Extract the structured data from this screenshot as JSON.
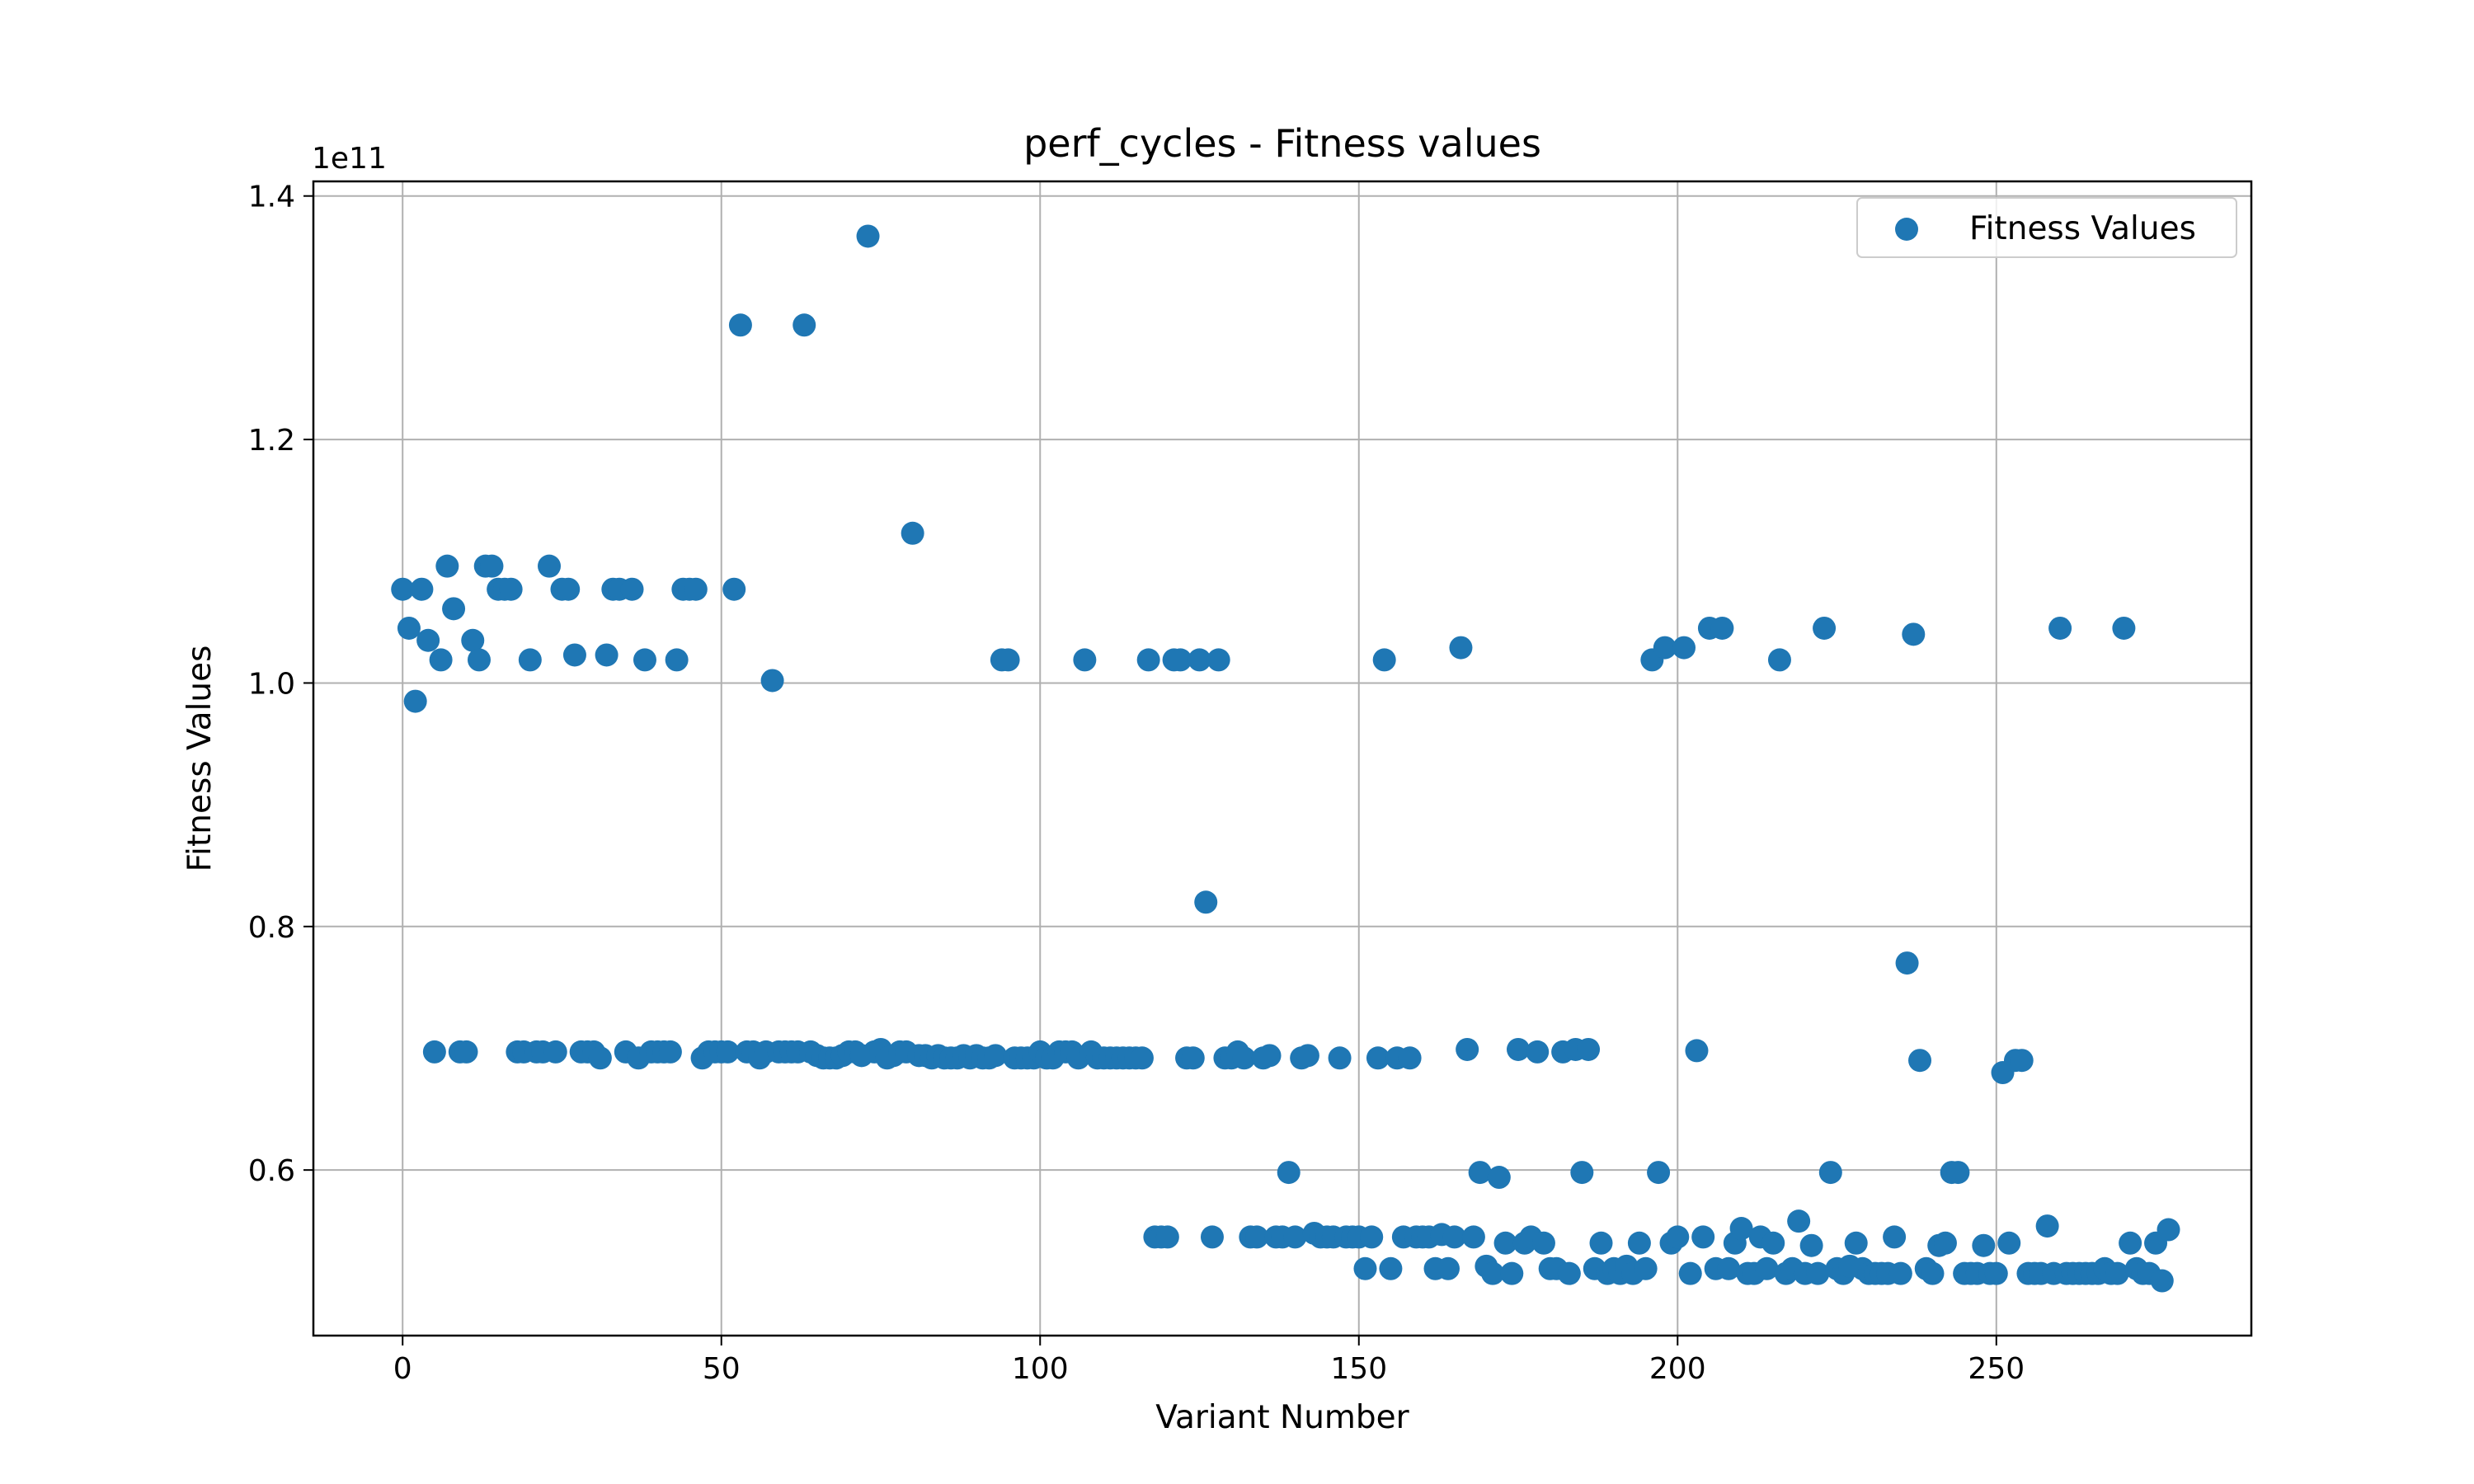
{
  "chart_data": {
    "type": "scatter",
    "title": "perf_cycles - Fitness values",
    "xlabel": "Variant Number",
    "ylabel": "Fitness Values",
    "y_offset_label": "1e11",
    "y_scale_factor": 100000000000,
    "xlim": [
      -14,
      290
    ],
    "ylim": [
      0.464,
      1.412
    ],
    "xticks": [
      0,
      50,
      100,
      150,
      200,
      250
    ],
    "yticks": [
      0.6,
      0.8,
      1.0,
      1.2,
      1.4
    ],
    "ytick_labels": [
      "0.6",
      "0.8",
      "1.0",
      "1.2",
      "1.4"
    ],
    "grid": true,
    "legend_position": "top-right",
    "color": "#1f77b4",
    "series": [
      {
        "name": "Fitness Values",
        "points": [
          [
            0,
            1.077
          ],
          [
            1,
            1.045
          ],
          [
            2,
            0.985
          ],
          [
            3,
            1.077
          ],
          [
            4,
            1.035
          ],
          [
            5,
            0.697
          ],
          [
            6,
            1.019
          ],
          [
            7,
            1.096
          ],
          [
            8,
            1.061
          ],
          [
            9,
            0.697
          ],
          [
            10,
            0.697
          ],
          [
            11,
            1.035
          ],
          [
            12,
            1.019
          ],
          [
            13,
            1.096
          ],
          [
            14,
            1.096
          ],
          [
            15,
            1.077
          ],
          [
            16,
            1.077
          ],
          [
            17,
            1.077
          ],
          [
            18,
            0.697
          ],
          [
            19,
            0.697
          ],
          [
            20,
            1.019
          ],
          [
            21,
            0.697
          ],
          [
            22,
            0.697
          ],
          [
            23,
            1.096
          ],
          [
            24,
            0.697
          ],
          [
            25,
            1.077
          ],
          [
            26,
            1.077
          ],
          [
            27,
            1.023
          ],
          [
            28,
            0.697
          ],
          [
            29,
            0.697
          ],
          [
            30,
            0.697
          ],
          [
            31,
            0.692
          ],
          [
            32,
            1.023
          ],
          [
            33,
            1.077
          ],
          [
            34,
            1.077
          ],
          [
            35,
            0.697
          ],
          [
            36,
            1.077
          ],
          [
            37,
            0.692
          ],
          [
            38,
            1.019
          ],
          [
            39,
            0.697
          ],
          [
            40,
            0.697
          ],
          [
            41,
            0.697
          ],
          [
            42,
            0.697
          ],
          [
            43,
            1.019
          ],
          [
            44,
            1.077
          ],
          [
            45,
            1.077
          ],
          [
            46,
            1.077
          ],
          [
            47,
            0.692
          ],
          [
            48,
            0.697
          ],
          [
            49,
            0.697
          ],
          [
            50,
            0.697
          ],
          [
            51,
            0.697
          ],
          [
            52,
            1.077
          ],
          [
            53,
            1.294
          ],
          [
            54,
            0.697
          ],
          [
            55,
            0.697
          ],
          [
            56,
            0.692
          ],
          [
            57,
            0.697
          ],
          [
            58,
            1.002
          ],
          [
            59,
            0.697
          ],
          [
            60,
            0.697
          ],
          [
            61,
            0.697
          ],
          [
            62,
            0.697
          ],
          [
            63,
            1.294
          ],
          [
            64,
            0.697
          ],
          [
            65,
            0.694
          ],
          [
            66,
            0.692
          ],
          [
            67,
            0.692
          ],
          [
            68,
            0.692
          ],
          [
            69,
            0.694
          ],
          [
            70,
            0.697
          ],
          [
            71,
            0.697
          ],
          [
            72,
            0.694
          ],
          [
            73,
            1.367
          ],
          [
            74,
            0.697
          ],
          [
            75,
            0.699
          ],
          [
            76,
            0.692
          ],
          [
            77,
            0.694
          ],
          [
            78,
            0.697
          ],
          [
            79,
            0.697
          ],
          [
            80,
            1.123
          ],
          [
            81,
            0.694
          ],
          [
            82,
            0.694
          ],
          [
            83,
            0.692
          ],
          [
            84,
            0.694
          ],
          [
            85,
            0.692
          ],
          [
            86,
            0.692
          ],
          [
            87,
            0.692
          ],
          [
            88,
            0.694
          ],
          [
            89,
            0.692
          ],
          [
            90,
            0.694
          ],
          [
            91,
            0.692
          ],
          [
            92,
            0.692
          ],
          [
            93,
            0.694
          ],
          [
            94,
            1.019
          ],
          [
            95,
            1.019
          ],
          [
            96,
            0.692
          ],
          [
            97,
            0.692
          ],
          [
            98,
            0.692
          ],
          [
            99,
            0.692
          ],
          [
            100,
            0.697
          ],
          [
            101,
            0.692
          ],
          [
            102,
            0.692
          ],
          [
            103,
            0.697
          ],
          [
            104,
            0.697
          ],
          [
            105,
            0.697
          ],
          [
            106,
            0.692
          ],
          [
            107,
            1.019
          ],
          [
            108,
            0.697
          ],
          [
            109,
            0.692
          ],
          [
            110,
            0.692
          ],
          [
            111,
            0.692
          ],
          [
            112,
            0.692
          ],
          [
            113,
            0.692
          ],
          [
            114,
            0.692
          ],
          [
            115,
            0.692
          ],
          [
            116,
            0.692
          ],
          [
            117,
            1.019
          ],
          [
            118,
            0.545
          ],
          [
            119,
            0.545
          ],
          [
            120,
            0.545
          ],
          [
            121,
            1.019
          ],
          [
            122,
            1.019
          ],
          [
            123,
            0.692
          ],
          [
            124,
            0.692
          ],
          [
            125,
            1.019
          ],
          [
            126,
            0.82
          ],
          [
            127,
            0.545
          ],
          [
            128,
            1.019
          ],
          [
            129,
            0.692
          ],
          [
            130,
            0.692
          ],
          [
            131,
            0.697
          ],
          [
            132,
            0.692
          ],
          [
            133,
            0.545
          ],
          [
            134,
            0.545
          ],
          [
            135,
            0.692
          ],
          [
            136,
            0.694
          ],
          [
            137,
            0.545
          ],
          [
            138,
            0.545
          ],
          [
            139,
            0.598
          ],
          [
            140,
            0.545
          ],
          [
            141,
            0.692
          ],
          [
            142,
            0.694
          ],
          [
            143,
            0.548
          ],
          [
            144,
            0.545
          ],
          [
            145,
            0.545
          ],
          [
            146,
            0.545
          ],
          [
            147,
            0.692
          ],
          [
            148,
            0.545
          ],
          [
            149,
            0.545
          ],
          [
            150,
            0.545
          ],
          [
            151,
            0.519
          ],
          [
            152,
            0.545
          ],
          [
            153,
            0.692
          ],
          [
            154,
            1.019
          ],
          [
            155,
            0.519
          ],
          [
            156,
            0.692
          ],
          [
            157,
            0.545
          ],
          [
            158,
            0.692
          ],
          [
            159,
            0.545
          ],
          [
            160,
            0.545
          ],
          [
            161,
            0.545
          ],
          [
            162,
            0.519
          ],
          [
            163,
            0.547
          ],
          [
            164,
            0.519
          ],
          [
            165,
            0.545
          ],
          [
            166,
            1.029
          ],
          [
            167,
            0.699
          ],
          [
            168,
            0.545
          ],
          [
            169,
            0.598
          ],
          [
            170,
            0.521
          ],
          [
            171,
            0.515
          ],
          [
            172,
            0.594
          ],
          [
            173,
            0.54
          ],
          [
            174,
            0.515
          ],
          [
            175,
            0.699
          ],
          [
            176,
            0.54
          ],
          [
            177,
            0.545
          ],
          [
            178,
            0.697
          ],
          [
            179,
            0.54
          ],
          [
            180,
            0.519
          ],
          [
            181,
            0.519
          ],
          [
            182,
            0.697
          ],
          [
            183,
            0.515
          ],
          [
            184,
            0.699
          ],
          [
            185,
            0.598
          ],
          [
            186,
            0.699
          ],
          [
            187,
            0.519
          ],
          [
            188,
            0.54
          ],
          [
            189,
            0.515
          ],
          [
            190,
            0.519
          ],
          [
            191,
            0.515
          ],
          [
            192,
            0.521
          ],
          [
            193,
            0.515
          ],
          [
            194,
            0.54
          ],
          [
            195,
            0.519
          ],
          [
            196,
            1.019
          ],
          [
            197,
            0.598
          ],
          [
            198,
            1.029
          ],
          [
            199,
            0.54
          ],
          [
            200,
            0.545
          ],
          [
            201,
            1.029
          ],
          [
            202,
            0.515
          ],
          [
            203,
            0.698
          ],
          [
            204,
            0.545
          ],
          [
            205,
            1.045
          ],
          [
            206,
            0.519
          ],
          [
            207,
            1.045
          ],
          [
            208,
            0.519
          ],
          [
            209,
            0.54
          ],
          [
            210,
            0.552
          ],
          [
            211,
            0.515
          ],
          [
            212,
            0.515
          ],
          [
            213,
            0.545
          ],
          [
            214,
            0.519
          ],
          [
            215,
            0.54
          ],
          [
            216,
            1.019
          ],
          [
            217,
            0.515
          ],
          [
            218,
            0.519
          ],
          [
            219,
            0.558
          ],
          [
            220,
            0.515
          ],
          [
            221,
            0.538
          ],
          [
            222,
            0.515
          ],
          [
            223,
            1.045
          ],
          [
            224,
            0.598
          ],
          [
            225,
            0.519
          ],
          [
            226,
            0.515
          ],
          [
            227,
            0.521
          ],
          [
            228,
            0.54
          ],
          [
            229,
            0.519
          ],
          [
            230,
            0.515
          ],
          [
            231,
            0.515
          ],
          [
            232,
            0.515
          ],
          [
            233,
            0.515
          ],
          [
            234,
            0.545
          ],
          [
            235,
            0.515
          ],
          [
            236,
            0.77
          ],
          [
            237,
            1.04
          ],
          [
            238,
            0.69
          ],
          [
            239,
            0.519
          ],
          [
            240,
            0.515
          ],
          [
            241,
            0.538
          ],
          [
            242,
            0.54
          ],
          [
            243,
            0.598
          ],
          [
            244,
            0.598
          ],
          [
            245,
            0.515
          ],
          [
            246,
            0.515
          ],
          [
            247,
            0.515
          ],
          [
            248,
            0.538
          ],
          [
            249,
            0.515
          ],
          [
            250,
            0.515
          ],
          [
            251,
            0.68
          ],
          [
            252,
            0.54
          ],
          [
            253,
            0.69
          ],
          [
            254,
            0.69
          ],
          [
            255,
            0.515
          ],
          [
            256,
            0.515
          ],
          [
            257,
            0.515
          ],
          [
            258,
            0.554
          ],
          [
            259,
            0.515
          ],
          [
            260,
            1.045
          ],
          [
            261,
            0.515
          ],
          [
            262,
            0.515
          ],
          [
            263,
            0.515
          ],
          [
            264,
            0.515
          ],
          [
            265,
            0.515
          ],
          [
            266,
            0.515
          ],
          [
            267,
            0.519
          ],
          [
            268,
            0.515
          ],
          [
            269,
            0.515
          ],
          [
            270,
            1.045
          ],
          [
            271,
            0.54
          ],
          [
            272,
            0.519
          ],
          [
            273,
            0.515
          ],
          [
            274,
            0.515
          ],
          [
            275,
            0.54
          ],
          [
            276,
            0.509
          ],
          [
            277,
            0.551
          ]
        ]
      }
    ]
  }
}
